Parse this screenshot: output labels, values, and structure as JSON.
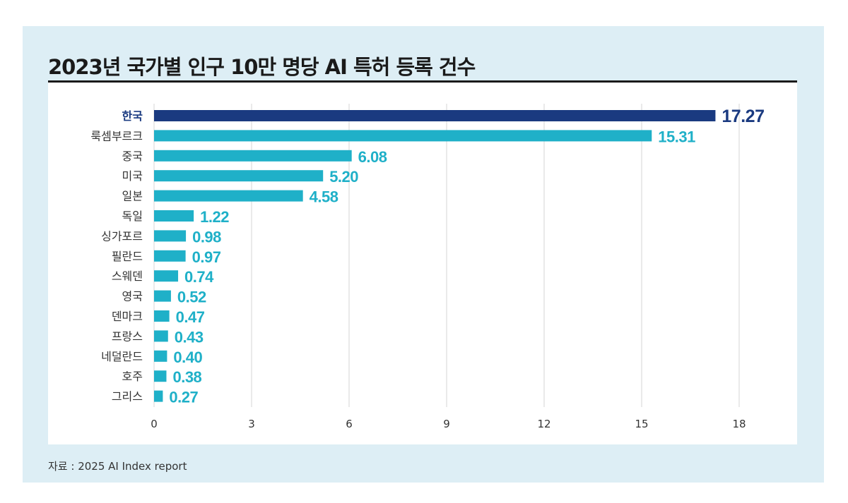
{
  "title": "2023년 국가별 인구 10만 명당 AI 특허 등록 건수",
  "source": "자료 : 2025 AI Index report",
  "colors": {
    "highlight": "#1a3a80",
    "bar": "#1fb0c8",
    "grid": "#d4d4d4",
    "text": "#333333"
  },
  "chart_data": {
    "type": "bar",
    "orientation": "horizontal",
    "title": "2023년 국가별 인구 10만 명당 AI 특허 등록 건수",
    "xlabel": "",
    "ylabel": "",
    "xlim": [
      0,
      18
    ],
    "xticks": [
      "0",
      "3",
      "6",
      "9",
      "12",
      "15",
      "18"
    ],
    "grid": "vertical",
    "highlight": "한국",
    "categories": [
      "한국",
      "룩셈부르크",
      "중국",
      "미국",
      "일본",
      "독일",
      "싱가포르",
      "필란드",
      "스웨덴",
      "영국",
      "덴마크",
      "프랑스",
      "네덜란드",
      "호주",
      "그리스"
    ],
    "values": [
      17.27,
      15.31,
      6.08,
      5.2,
      4.58,
      1.22,
      0.98,
      0.97,
      0.74,
      0.52,
      0.47,
      0.43,
      0.4,
      0.38,
      0.27
    ],
    "value_labels": [
      "17.27",
      "15.31",
      "6.08",
      "5.20",
      "4.58",
      "1.22",
      "0.98",
      "0.97",
      "0.74",
      "0.52",
      "0.47",
      "0.43",
      "0.40",
      "0.38",
      "0.27"
    ]
  }
}
